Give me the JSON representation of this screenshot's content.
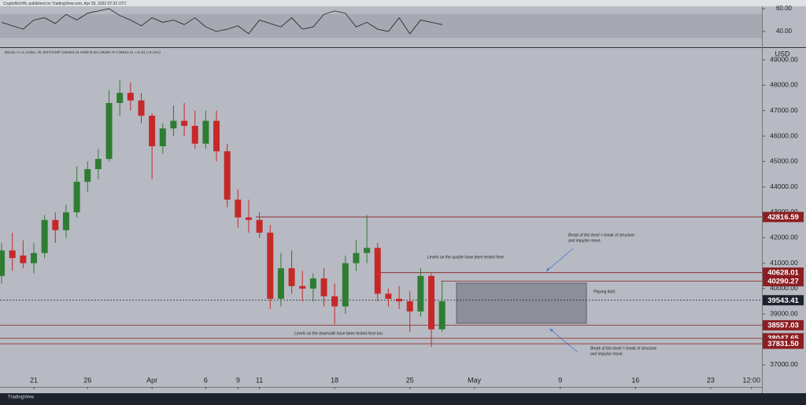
{
  "header": {
    "publisher": "CryptoNichHL published on TradingView.com, Apr 29, 2022 07:32 UTC",
    "legend": "Bitcoin / U.S. Dollar, 4h, BITSTAMP  O39494.19 H39578.55 L39185.70 C39543.41 +41.81 (+0.11%)",
    "brand": "TradingView"
  },
  "annotations": [
    "Break of this level = break of structure",
    "and impulse move.",
    "Levels on the upside have been tested here.",
    "Playing field.",
    "Levels on the downside have been tested here too.",
    "Break of this level = break of structure",
    "and impulse move."
  ],
  "chart_data": [
    {
      "type": "line",
      "color": "#1e1e1e",
      "x": [
        18,
        19,
        20,
        21,
        22,
        23,
        24,
        25,
        26,
        27,
        28,
        29,
        30,
        31,
        32,
        33,
        34,
        35,
        36,
        37,
        38,
        39,
        40,
        41,
        42,
        43,
        44,
        45,
        46,
        47,
        48,
        49,
        50,
        51,
        52,
        53,
        54,
        55,
        56,
        57,
        58,
        59
      ],
      "values": [
        48,
        45,
        42,
        50,
        52,
        47,
        55,
        50,
        56,
        58,
        60,
        54,
        50,
        45,
        52,
        48,
        50,
        46,
        52,
        44,
        40,
        42,
        45,
        38,
        50,
        47,
        44,
        52,
        42,
        44,
        55,
        58,
        56,
        44,
        48,
        42,
        40,
        52,
        38,
        50,
        48,
        46
      ],
      "ylim": [
        26.2,
        62.1
      ],
      "yticks": [
        {
          "value": 60,
          "label": "60.00"
        },
        {
          "value": 40,
          "label": "40.00"
        }
      ]
    },
    {
      "type": "candlestick",
      "up_color": "#2e7d32",
      "down_color": "#c62828",
      "unit": "USD",
      "x": [
        18,
        19,
        20,
        21,
        22,
        23,
        24,
        25,
        26,
        27,
        28,
        29,
        30,
        31,
        32,
        33,
        34,
        35,
        36,
        37,
        38,
        39,
        40,
        41,
        42,
        43,
        44,
        45,
        46,
        47,
        48,
        49,
        50,
        51,
        52,
        53,
        54,
        55,
        56,
        57,
        58,
        59
      ],
      "open": [
        40500,
        41500,
        41300,
        41000,
        41400,
        42700,
        42300,
        43000,
        44200,
        44700,
        45100,
        47300,
        47700,
        47400,
        46800,
        45600,
        46300,
        46600,
        46400,
        45700,
        46600,
        45400,
        43500,
        42800,
        42700,
        42200,
        39600,
        40800,
        40100,
        40000,
        40400,
        39700,
        39300,
        41000,
        41400,
        41600,
        39800,
        39600,
        39500,
        39100,
        40500,
        38400
      ],
      "high": [
        41800,
        42200,
        41900,
        41800,
        42900,
        43000,
        43300,
        44800,
        45000,
        45500,
        47800,
        48200,
        48100,
        47700,
        46900,
        46500,
        47200,
        47300,
        47000,
        47000,
        47000,
        45700,
        43900,
        43500,
        43000,
        42500,
        41400,
        41500,
        40700,
        40600,
        40800,
        40200,
        41300,
        41900,
        42900,
        41800,
        40000,
        40100,
        39900,
        40800,
        40600,
        40300
      ],
      "low": [
        40200,
        40700,
        40800,
        40600,
        41200,
        41800,
        42000,
        42800,
        43800,
        44300,
        45000,
        46800,
        47000,
        46500,
        44300,
        45300,
        46000,
        46000,
        45500,
        45500,
        45000,
        43200,
        42400,
        42200,
        42000,
        39200,
        39300,
        39800,
        39500,
        39500,
        39300,
        38600,
        39000,
        40700,
        41000,
        39500,
        39300,
        39200,
        38300,
        38900,
        37700,
        38300
      ],
      "close": [
        41500,
        41200,
        41000,
        41400,
        42700,
        42300,
        43000,
        44200,
        44700,
        45100,
        47300,
        47700,
        47400,
        46800,
        45600,
        46300,
        46600,
        46400,
        45700,
        46600,
        45400,
        43500,
        42800,
        42700,
        42200,
        39600,
        40800,
        40100,
        40000,
        40400,
        39700,
        39300,
        41000,
        41400,
        41600,
        39800,
        39600,
        39500,
        39100,
        40500,
        38400,
        39500
      ],
      "xlim": [
        17.85,
        88.77
      ],
      "xticks": [
        21,
        26,
        {
          "value": 32,
          "label": "Apr"
        },
        {
          "value": 37,
          "label": "6"
        },
        {
          "value": 40,
          "label": "9"
        },
        {
          "value": 42,
          "label": "11"
        },
        {
          "value": 49,
          "label": "18"
        },
        {
          "value": 56,
          "label": "25"
        },
        {
          "value": 62,
          "label": "May"
        },
        {
          "value": 70,
          "label": "9"
        },
        {
          "value": 77,
          "label": "16"
        },
        {
          "value": 84,
          "label": "23"
        },
        {
          "value": 87.8,
          "label": "12:00"
        }
      ],
      "ylim": [
        36134,
        49433
      ],
      "yticks": [
        {
          "value": 37000,
          "label": "37000.00"
        },
        {
          "value": 38000,
          "label": "38000.00"
        },
        {
          "value": 39000,
          "label": "39000.00"
        },
        {
          "value": 40000,
          "label": "40000.00"
        },
        {
          "value": 41000,
          "label": "41000.00"
        },
        {
          "value": 42000,
          "label": "42000.00"
        },
        {
          "value": 43000,
          "label": "43000.00"
        },
        {
          "value": 44000,
          "label": "44000.00"
        },
        {
          "value": 45000,
          "label": "45000.00"
        },
        {
          "value": 46000,
          "label": "46000.00"
        },
        {
          "value": 47000,
          "label": "47000.00"
        },
        {
          "value": 48000,
          "label": "48000.00"
        },
        {
          "value": 49000,
          "label": "49000.00"
        }
      ],
      "levels": [
        {
          "value": 42816.59,
          "x_start": 41.66,
          "color": "#8b1e22"
        },
        {
          "value": 40628.01,
          "x_start": 53.0,
          "color": "#8b1e22"
        },
        {
          "value": 40290.27,
          "x_start": 58.9,
          "color": "#8b1e22"
        },
        {
          "value": 39543.41,
          "x_start": 17.85,
          "color": "#1e222d"
        },
        {
          "value": 38557.03,
          "x_start": 17.85,
          "color": "#8b1e22"
        },
        {
          "value": 38047.65,
          "x_start": 17.85,
          "color": "#8b1e22"
        },
        {
          "value": {
            "value": 37831.5,
            "label": "37831.50"
          },
          "x_start": 17.85,
          "color": "#8b1e22"
        }
      ]
    }
  ]
}
